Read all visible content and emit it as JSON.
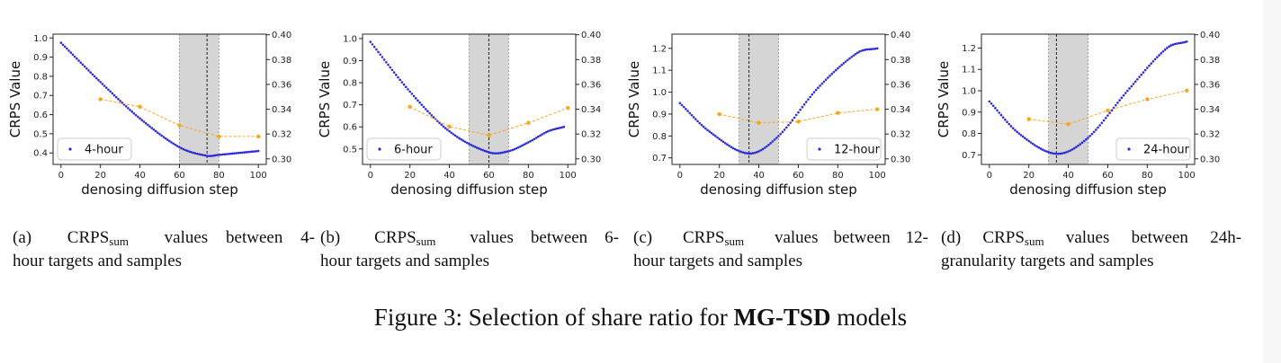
{
  "figure": {
    "caption_prefix": "Figure 3: Selection of share ratio for ",
    "caption_bold": "MG-TSD",
    "caption_suffix": " models"
  },
  "colors": {
    "blue": "#2b2bdc",
    "orange": "#f5a623",
    "band": "#d5d5d5"
  },
  "chart_data": [
    {
      "type": "line",
      "xlabel": "denosing diffusion step",
      "ylabel": "CRPS Value",
      "legend": "4-hour",
      "legend_position": "lower-left",
      "xlim": [
        -4,
        104
      ],
      "xticks": [
        "0",
        "20",
        "40",
        "60",
        "80",
        "100"
      ],
      "ylim": [
        0.34,
        1.02
      ],
      "yticks": [
        "0.4",
        "0.5",
        "0.6",
        "0.7",
        "0.8",
        "0.9",
        "1.0"
      ],
      "y2lim": [
        0.2955,
        0.4005
      ],
      "y2ticks": [
        "0.30",
        "0.32",
        "0.34",
        "0.36",
        "0.38",
        "0.40"
      ],
      "band": [
        60,
        80
      ],
      "vline": 74,
      "blue_curve": {
        "x": [
          0,
          20,
          40,
          60,
          74,
          80,
          90,
          100
        ],
        "y": [
          0.975,
          0.77,
          0.58,
          0.43,
          0.385,
          0.39,
          0.4,
          0.41
        ]
      },
      "orange_series": {
        "x": [
          20,
          40,
          60,
          80,
          100
        ],
        "y": [
          0.348,
          0.342,
          0.327,
          0.318,
          0.318
        ]
      },
      "caption": {
        "label": "(a)",
        "prefix": "CRPS",
        "sub": "sum",
        "line1": "values between 4-",
        "line2": "hour targets and samples"
      }
    },
    {
      "type": "line",
      "xlabel": "denosing diffusion step",
      "ylabel": "CRPS Value",
      "legend": "6-hour",
      "legend_position": "lower-left",
      "xlim": [
        -4,
        104
      ],
      "xticks": [
        "0",
        "20",
        "40",
        "60",
        "80",
        "100"
      ],
      "ylim": [
        0.43,
        1.02
      ],
      "yticks": [
        "0.5",
        "0.6",
        "0.7",
        "0.8",
        "0.9",
        "1.0"
      ],
      "y2lim": [
        0.2955,
        0.4005
      ],
      "y2ticks": [
        "0.30",
        "0.32",
        "0.34",
        "0.36",
        "0.38",
        "0.40"
      ],
      "band": [
        50,
        70
      ],
      "vline": 60,
      "blue_curve": {
        "x": [
          0,
          20,
          40,
          60,
          70,
          80,
          90,
          98
        ],
        "y": [
          0.985,
          0.76,
          0.58,
          0.485,
          0.49,
          0.53,
          0.58,
          0.6
        ]
      },
      "orange_series": {
        "x": [
          20,
          40,
          60,
          80,
          100
        ],
        "y": [
          0.342,
          0.326,
          0.319,
          0.329,
          0.341
        ]
      },
      "caption": {
        "label": "(b)",
        "prefix": "CRPS",
        "sub": "sum",
        "line1": "values between 6-",
        "line2": "hour targets and samples"
      }
    },
    {
      "type": "line",
      "xlabel": "denosing diffusion step",
      "ylabel": "CRPS Value",
      "legend": "12-hour",
      "legend_position": "lower-right",
      "xlim": [
        -4,
        104
      ],
      "xticks": [
        "0",
        "20",
        "40",
        "60",
        "80",
        "100"
      ],
      "ylim": [
        0.67,
        1.265
      ],
      "yticks": [
        "0.7",
        "0.8",
        "0.9",
        "1.0",
        "1.1",
        "1.2"
      ],
      "y2lim": [
        0.2955,
        0.4005
      ],
      "y2ticks": [
        "0.30",
        "0.32",
        "0.34",
        "0.36",
        "0.38",
        "0.40"
      ],
      "band": [
        30,
        50
      ],
      "vline": 35,
      "blue_curve": {
        "x": [
          0,
          15,
          35,
          50,
          70,
          90,
          100
        ],
        "y": [
          0.95,
          0.82,
          0.72,
          0.8,
          1.02,
          1.18,
          1.2
        ]
      },
      "orange_series": {
        "x": [
          20,
          40,
          60,
          80,
          100
        ],
        "y": [
          0.336,
          0.329,
          0.33,
          0.337,
          0.34
        ]
      },
      "caption": {
        "label": "(c)",
        "prefix": "CRPS",
        "sub": "sum",
        "line1": "values between 12-",
        "line2": "hour targets and samples"
      }
    },
    {
      "type": "line",
      "xlabel": "denosing diffusion step",
      "ylabel": "CRPS Value",
      "legend": "24-hour",
      "legend_position": "lower-right",
      "xlim": [
        -4,
        104
      ],
      "xticks": [
        "0",
        "20",
        "40",
        "60",
        "80",
        "100"
      ],
      "ylim": [
        0.655,
        1.265
      ],
      "yticks": [
        "0.7",
        "0.8",
        "0.9",
        "1.0",
        "1.1",
        "1.2"
      ],
      "y2lim": [
        0.2955,
        0.4005
      ],
      "y2ticks": [
        "0.30",
        "0.32",
        "0.34",
        "0.36",
        "0.38",
        "0.40"
      ],
      "band": [
        30,
        50
      ],
      "vline": 34,
      "blue_curve": {
        "x": [
          0,
          15,
          34,
          50,
          70,
          90,
          100
        ],
        "y": [
          0.95,
          0.8,
          0.705,
          0.78,
          1.0,
          1.2,
          1.23
        ]
      },
      "orange_series": {
        "x": [
          20,
          40,
          60,
          80,
          100
        ],
        "y": [
          0.332,
          0.328,
          0.339,
          0.348,
          0.355
        ]
      },
      "caption": {
        "label": "(d)",
        "prefix": "CRPS",
        "sub": "sum",
        "line1": "values between 24h-",
        "line2": "granularity targets and samples"
      }
    }
  ]
}
